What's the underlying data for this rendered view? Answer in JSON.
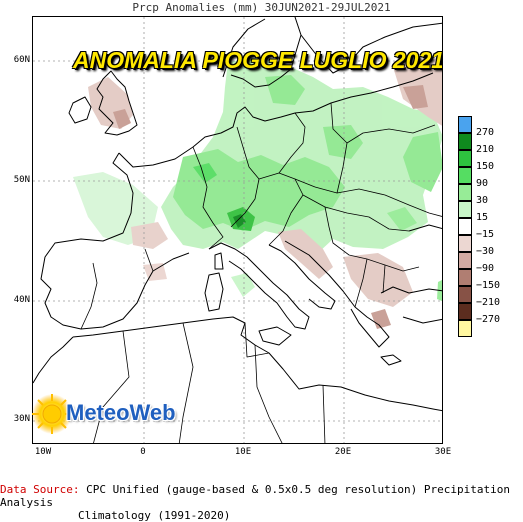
{
  "top_title": "Prcp Anomalies (mm) 30JUN2021-29JUL2021",
  "banner": "ANOMALIA PIOGGE LUGLIO 2021",
  "y_ticks": [
    "60N",
    "50N",
    "40N",
    "30N"
  ],
  "x_ticks": [
    "10W",
    "0",
    "10E",
    "20E",
    "30E"
  ],
  "legend": {
    "labels": [
      "270",
      "210",
      "150",
      "90",
      "30",
      "15",
      "−15",
      "−30",
      "−90",
      "−150",
      "−210",
      "−270"
    ],
    "colors": [
      "#4aa3ee",
      "#0f8a1e",
      "#2ec23f",
      "#55dd62",
      "#97ec97",
      "#c8f6c8",
      "#ffffff",
      "#ecd7d2",
      "#d2aaa2",
      "#b07e72",
      "#875246",
      "#5c2d1f",
      "#fff7a0"
    ]
  },
  "logo": {
    "text": "MeteoWeb"
  },
  "footer": {
    "source_label": "Data Source:",
    "source_text": " CPC Unified (gauge-based & 0.5x0.5 deg resolution) Precipitation Analysis",
    "climatology_text": "Climatology (1991-2020)"
  }
}
